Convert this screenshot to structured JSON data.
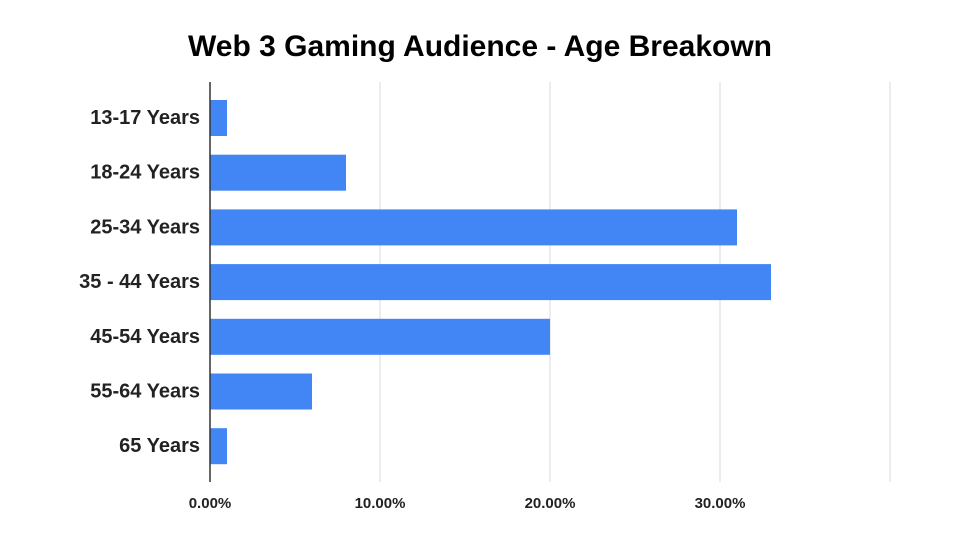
{
  "chart_data": {
    "type": "bar",
    "orientation": "horizontal",
    "title": "Web 3 Gaming Audience - Age Breakown",
    "categories": [
      "13-17 Years",
      "18-24 Years",
      "25-34 Years",
      "35 - 44 Years",
      "45-54 Years",
      "55-64 Years",
      "65 Years"
    ],
    "values": [
      1,
      8,
      31,
      33,
      20,
      6,
      1
    ],
    "value_unit": "percent",
    "xlim": [
      0,
      40
    ],
    "x_ticks": [
      0,
      10,
      20,
      30
    ],
    "x_tick_labels": [
      "0.00%",
      "10.00%",
      "20.00%",
      "30.00%"
    ],
    "grid": true,
    "legend": "none",
    "bar_color": "#4285F4",
    "grid_color": "#D9D9D9",
    "axis_color": "#333333"
  }
}
